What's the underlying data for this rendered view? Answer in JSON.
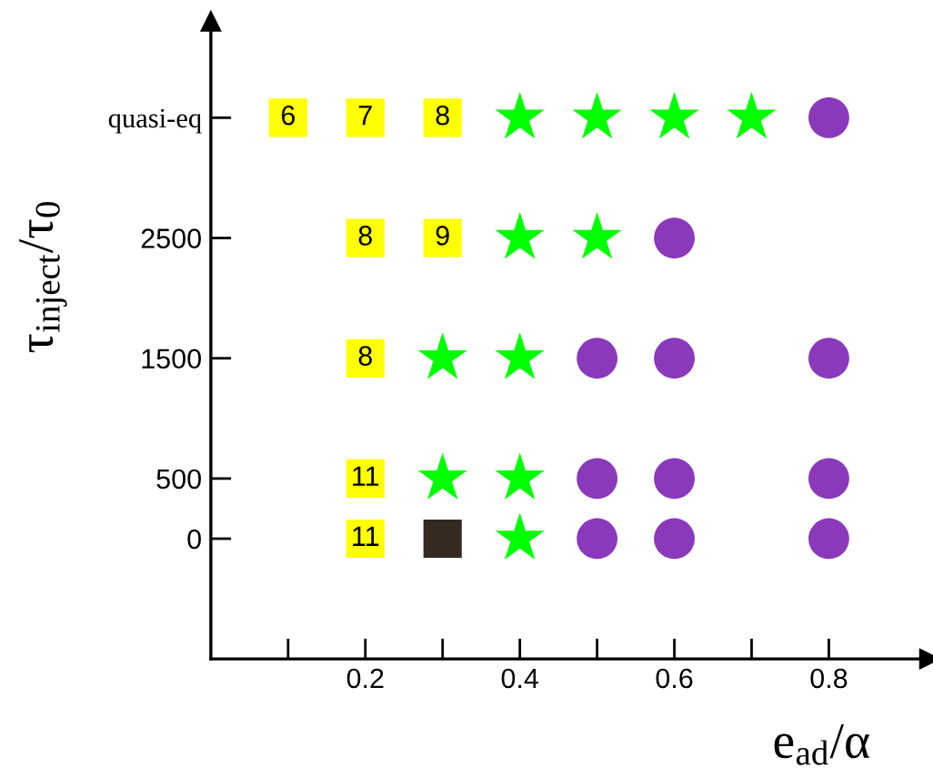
{
  "chart_data": {
    "type": "scatter",
    "xlabel": "e$_{ad}$/α",
    "ylabel": "τ$_{inject}$/τ$_{0}$",
    "xlim": [
      0,
      0.93
    ],
    "ylim": [
      -1000,
      4300
    ],
    "xticks": [
      {
        "value": 0.1,
        "label": null
      },
      0.2,
      {
        "value": 0.3,
        "label": null
      },
      0.4,
      {
        "value": 0.5,
        "label": null
      },
      0.6,
      {
        "value": 0.7,
        "label": null
      },
      0.8
    ],
    "yticks": [
      0,
      500,
      1500,
      2500,
      {
        "value": 3500,
        "label": "quasi-eq"
      }
    ],
    "grid": false,
    "legend": false,
    "annotations": [
      {
        "text": "6",
        "x": 0.1,
        "y": 3500
      },
      {
        "text": "7",
        "x": 0.2,
        "y": 3500
      },
      {
        "text": "8",
        "x": 0.3,
        "y": 3500
      },
      {
        "text": "8",
        "x": 0.2,
        "y": 2500
      },
      {
        "text": "9",
        "x": 0.3,
        "y": 2500
      },
      {
        "text": "8",
        "x": 0.2,
        "y": 1500
      },
      {
        "text": "11",
        "x": 0.2,
        "y": 500
      },
      {
        "text": "11",
        "x": 0.2,
        "y": 0
      }
    ],
    "series": [
      {
        "marker": "square",
        "color": "#ffff00",
        "x": [
          0.1,
          0.2,
          0.3,
          0.2,
          0.3,
          0.2,
          0.2,
          0.2
        ],
        "values": [
          3500,
          3500,
          3500,
          2500,
          2500,
          1500,
          500,
          0
        ]
      },
      {
        "marker": "square",
        "color": "#352a21",
        "x": [
          0.3
        ],
        "values": [
          0
        ]
      },
      {
        "marker": "star",
        "color": "#00ff00",
        "x": [
          0.4,
          0.5,
          0.6,
          0.7,
          0.4,
          0.5,
          0.3,
          0.4,
          0.3,
          0.4,
          0.4
        ],
        "values": [
          3500,
          3500,
          3500,
          3500,
          2500,
          2500,
          1500,
          1500,
          500,
          500,
          0
        ]
      },
      {
        "marker": "circle",
        "color": "#8b39bb",
        "x": [
          0.8,
          0.6,
          0.5,
          0.6,
          0.8,
          0.5,
          0.6,
          0.8,
          0.5,
          0.6,
          0.8
        ],
        "values": [
          3500,
          2500,
          1500,
          1500,
          1500,
          500,
          500,
          500,
          0,
          0,
          0
        ]
      }
    ]
  }
}
